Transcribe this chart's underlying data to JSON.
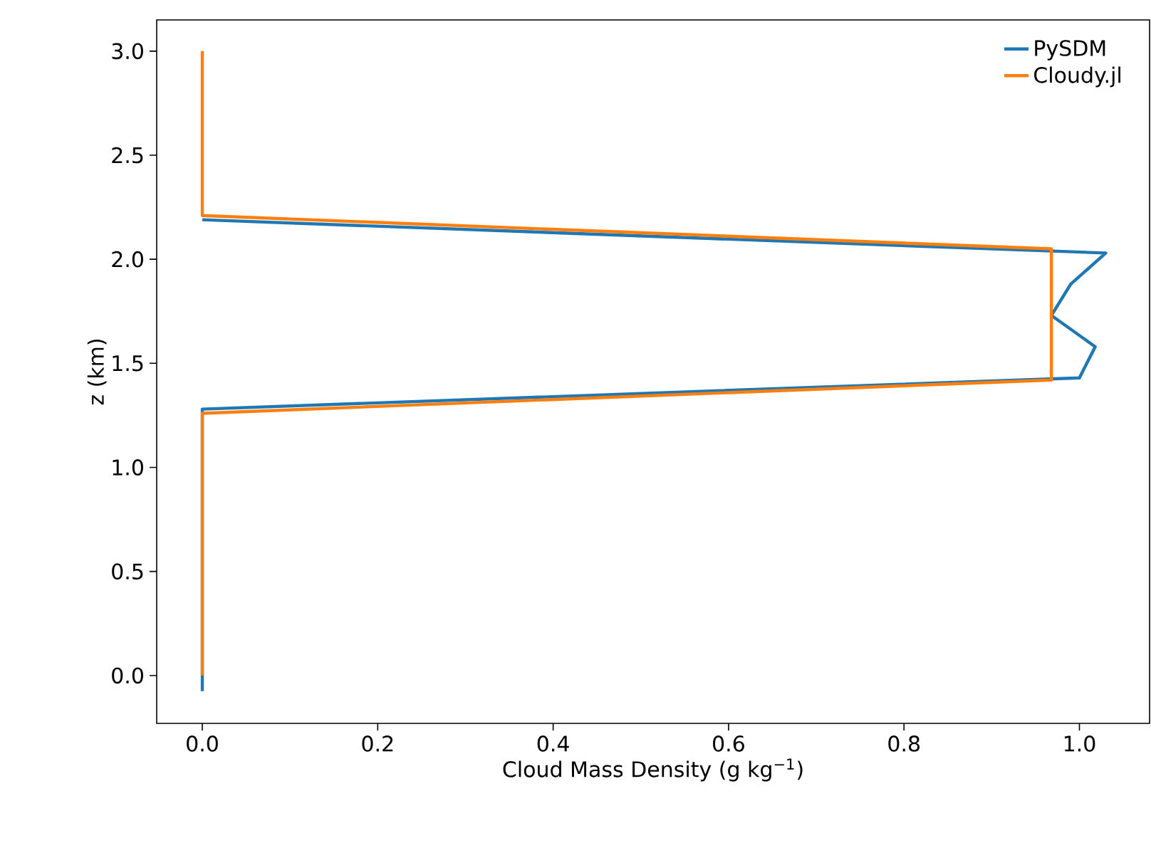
{
  "chart_data": {
    "type": "line",
    "xlabel": "Cloud Mass Density (g kg$^{−1}$)",
    "ylabel": "z (km)",
    "xlim": [
      -0.052,
      1.08
    ],
    "ylim": [
      -0.23,
      3.15
    ],
    "xticks": [
      {
        "value": 0,
        "label": "0.0"
      },
      0.2,
      0.4,
      0.6,
      0.8,
      {
        "value": 1,
        "label": "1.0"
      }
    ],
    "yticks": [
      {
        "value": 0,
        "label": "0.0"
      },
      0.5,
      {
        "value": 1,
        "label": "1.0"
      },
      1.5,
      {
        "value": 2,
        "label": "2.0"
      },
      2.5,
      {
        "value": 3,
        "label": "3.0"
      }
    ],
    "legend": "top right",
    "grid": false,
    "line_style": "solid",
    "marker": "none",
    "series": [
      {
        "name": "PySDM",
        "color": "#1f77b4",
        "values": [
          -0.075,
          1.28,
          1.43,
          1.58,
          1.73,
          1.88,
          2.03,
          2.19
        ],
        "x": [
          0,
          0,
          1.0,
          1.018,
          0.968,
          0.99,
          1.03,
          0
        ]
      },
      {
        "name": "Cloudy.jl",
        "color": "#ff7f0e",
        "values": [
          0,
          1.26,
          1.42,
          2.05,
          2.21,
          3.0
        ],
        "x": [
          0,
          0,
          0.968,
          0.968,
          0,
          0
        ]
      }
    ]
  }
}
